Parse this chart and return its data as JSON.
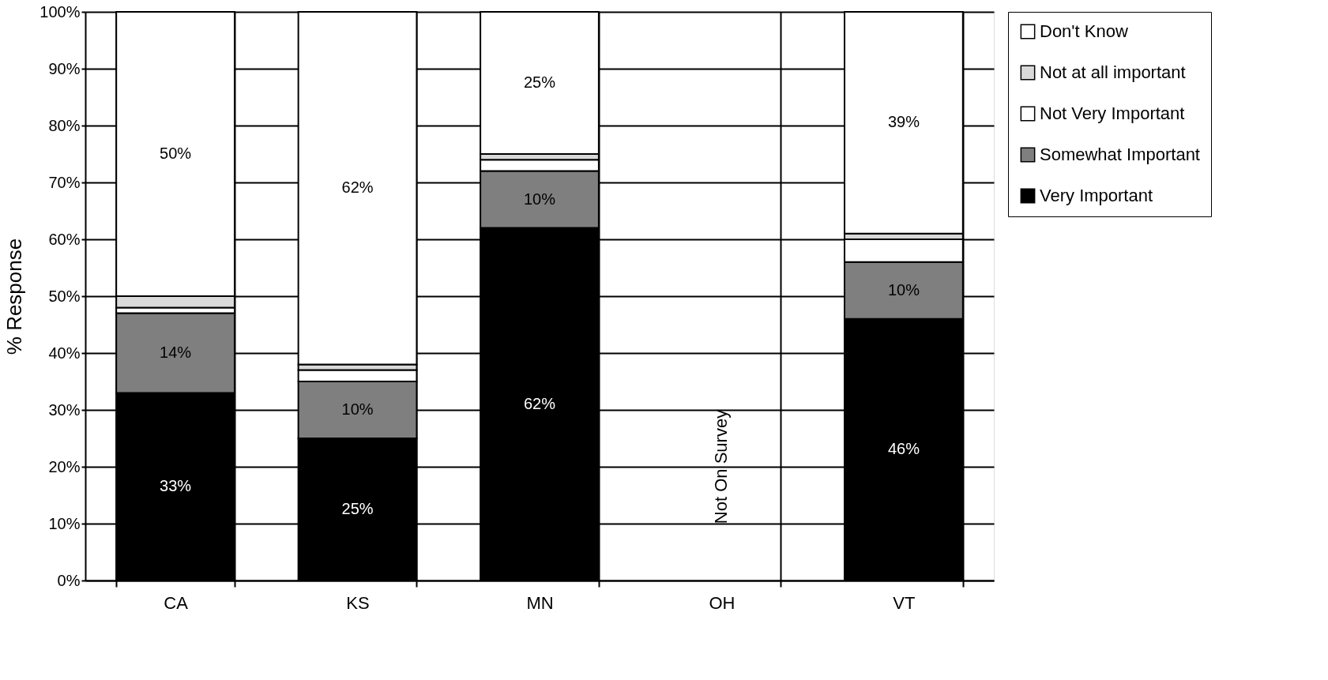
{
  "chart_data": {
    "type": "bar",
    "stacked": true,
    "ylabel": "% Response",
    "categories": [
      "CA",
      "KS",
      "MN",
      "OH",
      "VT"
    ],
    "series": [
      {
        "name": "Very Important",
        "color": "#000000",
        "values": [
          33,
          25,
          62,
          null,
          46
        ],
        "value_labels": [
          "33%",
          "25%",
          "62%",
          null,
          "46%"
        ]
      },
      {
        "name": "Somewhat Important",
        "color": "#7f7f7f",
        "values": [
          14,
          10,
          10,
          null,
          10
        ],
        "value_labels": [
          "14%",
          "10%",
          "10%",
          null,
          "10%"
        ]
      },
      {
        "name": "Not Very Important",
        "color": "#ffffff",
        "values": [
          1,
          2,
          2,
          null,
          4
        ],
        "value_labels": [
          null,
          null,
          null,
          null,
          null
        ]
      },
      {
        "name": "Not at all important",
        "color": "#d9d9d9",
        "values": [
          2,
          1,
          1,
          null,
          1
        ],
        "value_labels": [
          null,
          null,
          null,
          null,
          null
        ]
      },
      {
        "name": "Don't Know",
        "color": "#ffffff",
        "values": [
          50,
          62,
          25,
          null,
          39
        ],
        "value_labels": [
          "50%",
          "62%",
          "25%",
          null,
          "39%"
        ]
      }
    ],
    "ylim": [
      0,
      100
    ],
    "yticks": [
      {
        "value": 0,
        "label": "0%"
      },
      {
        "value": 10,
        "label": "10%"
      },
      {
        "value": 20,
        "label": "20%"
      },
      {
        "value": 30,
        "label": "30%"
      },
      {
        "value": 40,
        "label": "40%"
      },
      {
        "value": 50,
        "label": "50%"
      },
      {
        "value": 60,
        "label": "60%"
      },
      {
        "value": 70,
        "label": "70%"
      },
      {
        "value": 80,
        "label": "80%"
      },
      {
        "value": 90,
        "label": "90%"
      },
      {
        "value": 100,
        "label": "100%"
      }
    ],
    "annotations": [
      "Not On Survey"
    ],
    "grid": true,
    "legend": "right"
  }
}
